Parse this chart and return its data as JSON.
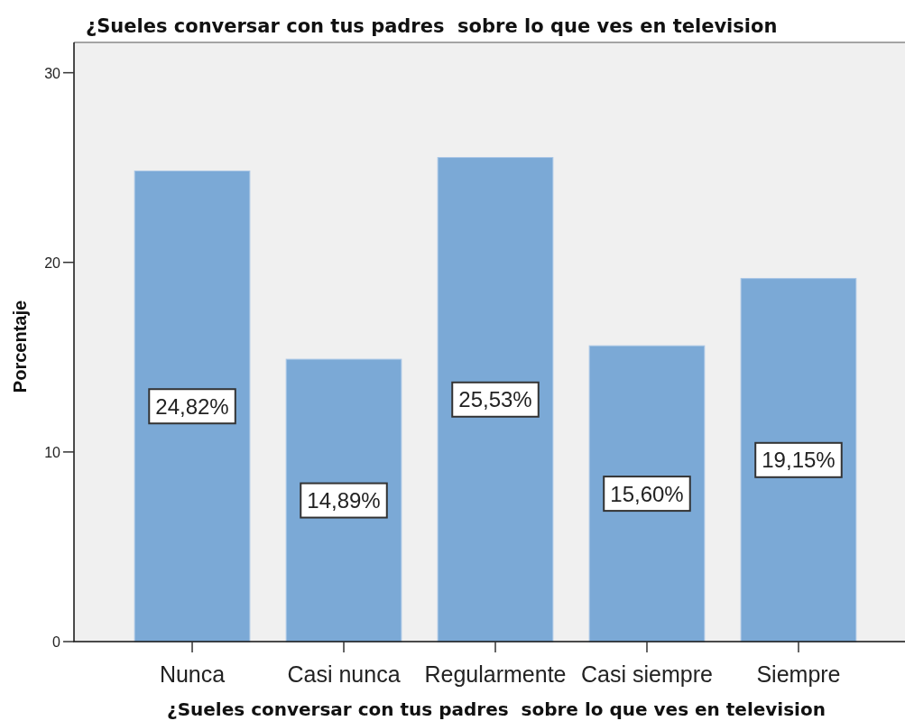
{
  "chart_data": {
    "type": "bar",
    "title": "¿Sueles conversar con tus padres  sobre lo que ves en television",
    "xlabel": "¿Sueles conversar con tus padres  sobre lo que ves en television",
    "ylabel": "Porcentaje",
    "categories": [
      "Nunca",
      "Casi nunca",
      "Regularmente",
      "Casi siempre",
      "Siempre"
    ],
    "values": [
      24.82,
      14.89,
      25.53,
      15.6,
      19.15
    ],
    "value_labels": [
      "24,82%",
      "14,89%",
      "25,53%",
      "15,60%",
      "19,15%"
    ],
    "color": "#7ba9d6",
    "ylim": [
      0,
      31.6
    ],
    "yticks": [
      0,
      10,
      20,
      30
    ]
  }
}
